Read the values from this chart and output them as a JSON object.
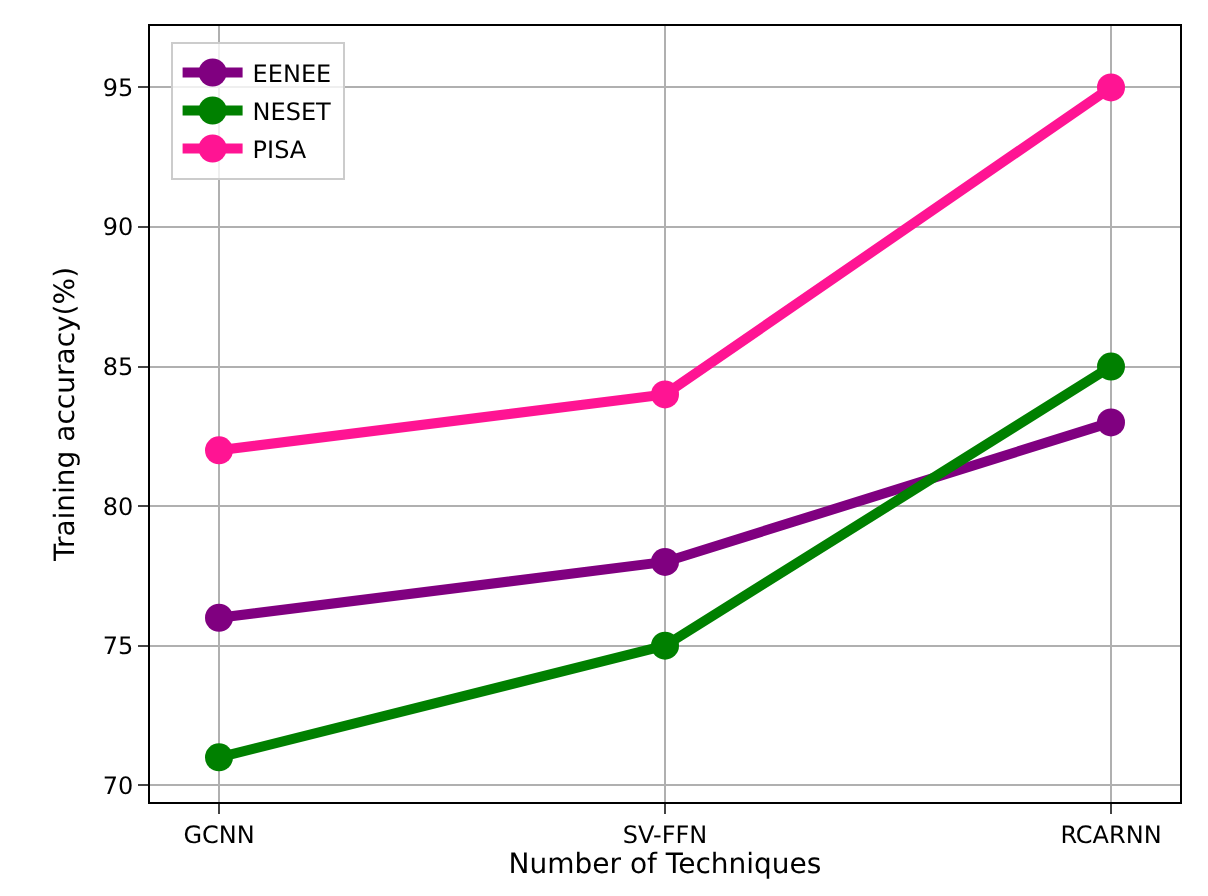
{
  "chart_data": {
    "type": "line",
    "xlabel": "Number of Techniques",
    "ylabel": "Training accuracy(%)",
    "categories": [
      "GCNN",
      "SV-FFN",
      "RCARNN"
    ],
    "series": [
      {
        "name": "EENEE",
        "color": "#800080",
        "values": [
          76,
          78,
          83
        ]
      },
      {
        "name": "NESET",
        "color": "#008000",
        "values": [
          71,
          75,
          85
        ]
      },
      {
        "name": "PISA",
        "color": "#ff1493",
        "values": [
          82,
          84,
          95
        ]
      }
    ],
    "ylim": [
      69.4,
      97.2
    ],
    "yticks": [
      70,
      75,
      80,
      85,
      90,
      95
    ],
    "grid": true,
    "legend": "top left",
    "marker": "circle",
    "line_style": "solid"
  }
}
